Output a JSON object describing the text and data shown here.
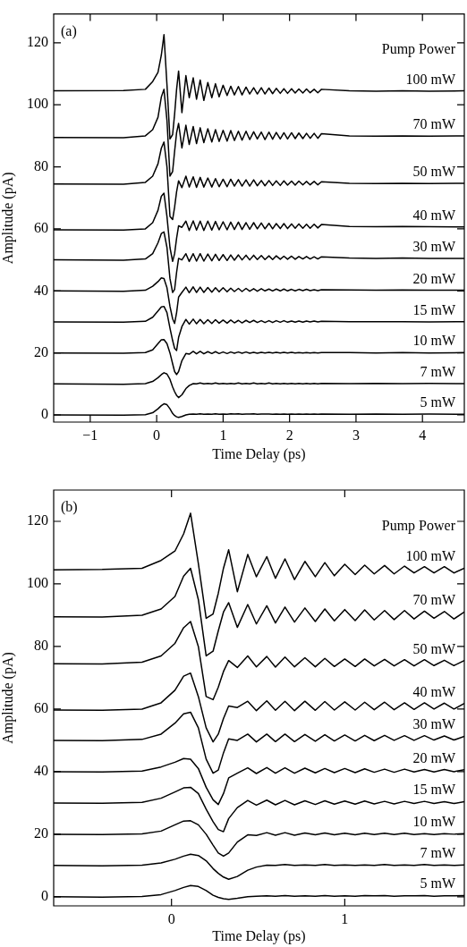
{
  "chart_data": [
    {
      "type": "line",
      "xlabel": "Time Delay (ps)",
      "ylabel": "Amplitude (pA)",
      "legend_title": "Pump Power",
      "annotations": [
        "(a)"
      ],
      "legend": "right",
      "grid": false,
      "marker": "none",
      "line_style": "solid",
      "xlim": [
        -1.55,
        4.63
      ],
      "xticks": [
        -1,
        0,
        1,
        2,
        3,
        4
      ],
      "ylim": [
        -2.3,
        129.3
      ],
      "yticks": [
        0,
        20,
        40,
        60,
        80,
        100,
        120
      ],
      "x": [
        -1.55,
        -0.5,
        -0.17,
        -0.06,
        0.02,
        0.07,
        0.11,
        0.155,
        0.2,
        0.24,
        0.27,
        0.3,
        0.33,
        0.38,
        0.44,
        0.49,
        0.55,
        0.6,
        0.655,
        0.71,
        0.77,
        0.83,
        0.885,
        0.94,
        1.0,
        1.06,
        1.115,
        1.17,
        1.23,
        1.285,
        1.345,
        1.4,
        1.46,
        1.515,
        1.575,
        1.63,
        1.69,
        1.745,
        1.8,
        1.86,
        1.915,
        1.97,
        2.03,
        2.085,
        2.14,
        2.2,
        2.255,
        2.31,
        2.37,
        2.425,
        2.48,
        2.9,
        3.3,
        3.7,
        4.1,
        4.63
      ],
      "series": [
        {
          "name": "100 mW",
          "color": "#000000",
          "values": [
            104.5,
            104.6,
            105,
            107.5,
            110.5,
            116,
            122.6,
            106.5,
            89,
            90.4,
            97,
            105,
            110.9,
            97.5,
            109.4,
            102.3,
            108.7,
            101.8,
            108,
            101.4,
            107.2,
            102.3,
            106.8,
            102.6,
            106.3,
            103,
            106,
            103.2,
            105.9,
            103.2,
            105.7,
            103.5,
            105.5,
            103.5,
            105.5,
            103.5,
            105.4,
            103.6,
            105.3,
            103.7,
            105.2,
            103.7,
            105.2,
            103.8,
            105.1,
            103.8,
            105.1,
            103.9,
            105,
            103.9,
            105,
            104.5,
            104.4,
            104.5,
            104.4,
            104.5
          ]
        },
        {
          "name": "70 mW",
          "color": "#000000",
          "values": [
            89.5,
            89.4,
            90,
            92,
            96,
            102.5,
            105,
            95,
            77,
            78.5,
            85,
            91,
            94,
            86.1,
            93.4,
            87.2,
            93,
            87.5,
            92.6,
            87.8,
            92.3,
            88,
            92,
            88.2,
            91.8,
            88.3,
            91.7,
            88.5,
            91.5,
            88.6,
            91.5,
            88.8,
            91.3,
            89,
            91.2,
            88.8,
            91.2,
            88.9,
            91.1,
            89,
            91,
            89,
            91,
            89.1,
            90.9,
            89.1,
            90.8,
            89.2,
            90.8,
            89.2,
            90.7,
            90,
            89.9,
            90,
            89.9,
            90
          ]
        },
        {
          "name": "50 mW",
          "color": "#000000",
          "values": [
            74.5,
            74.4,
            75,
            77,
            81,
            86,
            88,
            80,
            64,
            63,
            67,
            72,
            75.5,
            73.3,
            77,
            73.5,
            76.8,
            73.4,
            76.6,
            73.5,
            76.4,
            73.5,
            76.2,
            73.6,
            76,
            73.6,
            76,
            73.8,
            75.9,
            73.8,
            75.8,
            73.8,
            75.8,
            73.9,
            75.6,
            73.9,
            75.6,
            74,
            75.5,
            74,
            75.5,
            74.1,
            75.4,
            74.1,
            75.4,
            74.2,
            75.3,
            74.2,
            75.3,
            74.2,
            75.2,
            74.7,
            74.6,
            74.7,
            74.6,
            74.7
          ]
        },
        {
          "name": "40 mW",
          "color": "#000000",
          "values": [
            59.7,
            59.6,
            60,
            62,
            66,
            70.5,
            71.5,
            64,
            54,
            49.5,
            52,
            57,
            61,
            60.5,
            62.5,
            59.5,
            62.6,
            59.6,
            62.5,
            59.5,
            62.5,
            59.6,
            62.4,
            59.7,
            62.3,
            59.7,
            62.2,
            59.8,
            62.2,
            59.8,
            62,
            59.9,
            62,
            60,
            61.9,
            60,
            61.8,
            60,
            61.7,
            60.1,
            61.7,
            60.1,
            61.6,
            60.2,
            61.6,
            60.2,
            61.5,
            60.2,
            61.5,
            60.3,
            61.4,
            60.8,
            60.7,
            60.8,
            60.7,
            60.6
          ]
        },
        {
          "name": "30 mW",
          "color": "#000000",
          "values": [
            50,
            49.9,
            50.3,
            52,
            55.5,
            58.5,
            59,
            54,
            44,
            39.5,
            40.5,
            46,
            50.5,
            50,
            52,
            49.5,
            52,
            49.6,
            52,
            49.6,
            51.9,
            49.7,
            51.8,
            49.8,
            51.7,
            49.8,
            51.6,
            49.9,
            51.6,
            50,
            51.5,
            50,
            51.5,
            50.1,
            51.4,
            50.1,
            51.3,
            50.1,
            51.3,
            50.2,
            51.2,
            50.2,
            51.2,
            50.2,
            51.1,
            50.3,
            51.1,
            50.3,
            51,
            50.3,
            51,
            50.6,
            50.5,
            50.6,
            50.5,
            50.5
          ]
        },
        {
          "name": "20 mW",
          "color": "#000000",
          "values": [
            40,
            39.9,
            40.2,
            41.5,
            43,
            44.2,
            44,
            41,
            35,
            31,
            29.5,
            33,
            38,
            39.5,
            41.2,
            39.4,
            41.3,
            39.5,
            41.2,
            39.5,
            41.1,
            39.6,
            41,
            39.7,
            41,
            39.7,
            40.9,
            39.8,
            40.8,
            39.8,
            40.8,
            39.9,
            40.7,
            39.9,
            40.7,
            40,
            40.6,
            40,
            40.6,
            40,
            40.6,
            40,
            40.5,
            40,
            40.5,
            40.1,
            40.5,
            40.1,
            40.4,
            40.1,
            40.4,
            40.3,
            40.2,
            40.3,
            40.2,
            40.2
          ]
        },
        {
          "name": "15 mW",
          "color": "#000000",
          "values": [
            30,
            29.9,
            30.2,
            31.5,
            33.5,
            34.8,
            35,
            33,
            28,
            24,
            21.5,
            20.8,
            25,
            28.5,
            30.8,
            29.3,
            30.9,
            29.4,
            30.8,
            29.4,
            30.7,
            29.5,
            30.7,
            29.6,
            30.6,
            29.6,
            30.6,
            29.7,
            30.5,
            29.7,
            30.5,
            29.8,
            30.5,
            29.8,
            30.4,
            29.8,
            30.4,
            29.8,
            30.4,
            29.9,
            30.4,
            29.9,
            30.3,
            29.9,
            30.3,
            29.9,
            30.3,
            30,
            30.3,
            30,
            30.2,
            30.1,
            30.1,
            30.1,
            30,
            30.1
          ]
        },
        {
          "name": "10 mW",
          "color": "#000000",
          "values": [
            20,
            19.9,
            20.1,
            21,
            23,
            24.2,
            24.3,
            23,
            20,
            16.5,
            14,
            13,
            14,
            17.5,
            19.8,
            19.6,
            20.5,
            19.7,
            20.5,
            19.7,
            20.4,
            19.8,
            20.4,
            19.8,
            20.3,
            19.8,
            20.3,
            19.9,
            20.3,
            19.9,
            20.3,
            19.9,
            20.2,
            19.9,
            20.2,
            20,
            20.2,
            20,
            20.2,
            20,
            20.2,
            20,
            20.2,
            20,
            20.1,
            20,
            20.1,
            20,
            20.1,
            20,
            20.1,
            20.1,
            20,
            20.1,
            20,
            20.1
          ]
        },
        {
          "name": "7 mW",
          "color": "#000000",
          "values": [
            10,
            9.9,
            10.1,
            10.8,
            12,
            13,
            13.6,
            13.2,
            11.5,
            9,
            7.5,
            6.3,
            5.6,
            6.5,
            8.5,
            9.5,
            10.1,
            10,
            10.3,
            10,
            10.2,
            10,
            10.3,
            10,
            10.2,
            10,
            10.2,
            10,
            10.3,
            10,
            10.2,
            10,
            10.3,
            10,
            10.2,
            10,
            10.3,
            10,
            10.2,
            10,
            10.2,
            10,
            10.2,
            10,
            10.2,
            10,
            10.2,
            10,
            10.2,
            10,
            10.2,
            10.1,
            10.2,
            10.1,
            10.2,
            10.1
          ]
        },
        {
          "name": "5 mW",
          "color": "#000000",
          "values": [
            0,
            -0.1,
            0.1,
            0.7,
            2,
            3,
            3.6,
            3.3,
            2,
            0.5,
            -0.2,
            -0.6,
            -0.8,
            -0.5,
            0,
            0.2,
            0.3,
            0.2,
            0.4,
            0.2,
            0.3,
            0.2,
            0.4,
            0.2,
            0.3,
            0.2,
            0.4,
            0.3,
            0.4,
            0.2,
            0.3,
            0.3,
            0.4,
            0.2,
            0.3,
            0.3,
            0.3,
            0.2,
            0.3,
            0.2,
            0.3,
            0.2,
            0.3,
            0.2,
            0.3,
            0.2,
            0.3,
            0.2,
            0.3,
            0.2,
            0.3,
            0.2,
            0.3,
            0.2,
            0.3,
            0.2
          ]
        }
      ]
    },
    {
      "type": "line",
      "xlabel": "Time Delay (ps)",
      "ylabel": "Amplitude (pA)",
      "legend_title": "Pump Power",
      "annotations": [
        "(b)"
      ],
      "legend": "right",
      "grid": false,
      "marker": "none",
      "line_style": "solid",
      "xlim": [
        -0.68,
        1.69
      ],
      "xticks": [
        0,
        1
      ],
      "ylim": [
        -2.9,
        130
      ],
      "yticks": [
        0,
        20,
        40,
        60,
        80,
        100,
        120
      ],
      "x": [
        -0.68,
        -0.4,
        -0.17,
        -0.06,
        0.02,
        0.07,
        0.11,
        0.155,
        0.2,
        0.24,
        0.27,
        0.3,
        0.33,
        0.38,
        0.44,
        0.49,
        0.55,
        0.6,
        0.655,
        0.71,
        0.77,
        0.83,
        0.885,
        0.94,
        1.0,
        1.06,
        1.115,
        1.17,
        1.23,
        1.285,
        1.345,
        1.4,
        1.46,
        1.515,
        1.575,
        1.63,
        1.69
      ],
      "series": [
        {
          "name": "100 mW",
          "color": "#000000",
          "values": [
            104.5,
            104.6,
            105,
            107.5,
            110.5,
            116,
            122.6,
            106.5,
            89,
            90.4,
            97,
            105,
            110.9,
            97.5,
            109.4,
            102.3,
            108.7,
            101.8,
            108,
            101.4,
            107.2,
            102.3,
            106.8,
            102.6,
            106.3,
            103,
            106,
            103.2,
            105.9,
            103.2,
            105.7,
            103.5,
            105.5,
            103.5,
            105.5,
            103.5,
            105
          ]
        },
        {
          "name": "70 mW",
          "color": "#000000",
          "values": [
            89.5,
            89.4,
            90,
            92,
            96,
            102.5,
            105,
            95,
            77,
            78.5,
            85,
            91,
            94,
            86.1,
            93.4,
            87.2,
            93,
            87.5,
            92.6,
            87.8,
            92.3,
            88,
            92,
            88.2,
            91.8,
            88.3,
            91.7,
            88.5,
            91.5,
            88.6,
            91.5,
            88.8,
            91.3,
            89,
            91.2,
            88.8,
            91
          ]
        },
        {
          "name": "50 mW",
          "color": "#000000",
          "values": [
            74.5,
            74.4,
            75,
            77,
            81,
            86,
            88,
            80,
            64,
            63,
            67,
            72,
            75.5,
            73.3,
            77,
            73.5,
            76.8,
            73.4,
            76.6,
            73.5,
            76.4,
            73.5,
            76.2,
            73.6,
            76,
            73.6,
            76,
            73.8,
            75.9,
            73.8,
            75.8,
            73.8,
            75.8,
            73.9,
            75.6,
            73.9,
            75.5
          ]
        },
        {
          "name": "40 mW",
          "color": "#000000",
          "values": [
            59.7,
            59.6,
            60,
            62,
            66,
            70.5,
            71.5,
            64,
            54,
            49.5,
            52,
            57,
            61,
            60.5,
            62.5,
            59.5,
            62.6,
            59.6,
            62.5,
            59.5,
            62.5,
            59.6,
            62.4,
            59.7,
            62.3,
            59.7,
            62.2,
            59.8,
            62.2,
            59.8,
            62,
            59.9,
            62,
            60,
            61.9,
            60,
            61.8
          ]
        },
        {
          "name": "30 mW",
          "color": "#000000",
          "values": [
            50,
            49.9,
            50.3,
            52,
            55.5,
            58.5,
            59,
            54,
            44,
            39.5,
            40.5,
            46,
            50.5,
            50,
            52,
            49.5,
            52,
            49.6,
            52,
            49.6,
            51.9,
            49.7,
            51.8,
            49.8,
            51.7,
            49.8,
            51.6,
            49.9,
            51.6,
            50,
            51.5,
            50,
            51.5,
            50.1,
            51.4,
            50.1,
            51.3
          ]
        },
        {
          "name": "20 mW",
          "color": "#000000",
          "values": [
            40,
            39.9,
            40.2,
            41.5,
            43,
            44.2,
            44,
            41,
            35,
            31,
            29.5,
            33,
            38,
            39.5,
            41.2,
            39.4,
            41.3,
            39.5,
            41.2,
            39.5,
            41.1,
            39.6,
            41,
            39.7,
            41,
            39.7,
            40.9,
            39.8,
            40.8,
            39.8,
            40.8,
            39.9,
            40.7,
            39.9,
            40.7,
            40,
            40.6
          ]
        },
        {
          "name": "15 mW",
          "color": "#000000",
          "values": [
            30,
            29.9,
            30.2,
            31.5,
            33.5,
            34.8,
            35,
            33,
            28,
            24,
            21.5,
            20.8,
            25,
            28.5,
            30.8,
            29.3,
            30.9,
            29.4,
            30.8,
            29.4,
            30.7,
            29.5,
            30.7,
            29.6,
            30.6,
            29.6,
            30.6,
            29.7,
            30.5,
            29.7,
            30.5,
            29.8,
            30.5,
            29.8,
            30.4,
            29.8,
            30.4
          ]
        },
        {
          "name": "10 mW",
          "color": "#000000",
          "values": [
            20,
            19.9,
            20.1,
            21,
            23,
            24.2,
            24.3,
            23,
            20,
            16.5,
            14,
            13,
            14,
            17.5,
            19.8,
            19.6,
            20.5,
            19.7,
            20.5,
            19.7,
            20.4,
            19.8,
            20.4,
            19.8,
            20.3,
            19.8,
            20.3,
            19.9,
            20.3,
            19.9,
            20.3,
            19.9,
            20.2,
            19.9,
            20.2,
            20,
            20.2
          ]
        },
        {
          "name": "7 mW",
          "color": "#000000",
          "values": [
            10,
            9.9,
            10.1,
            10.8,
            12,
            13,
            13.6,
            13.2,
            11.5,
            9,
            7.5,
            6.3,
            5.6,
            6.5,
            8.5,
            9.5,
            10.1,
            10,
            10.3,
            10,
            10.2,
            10,
            10.3,
            10,
            10.2,
            10,
            10.2,
            10,
            10.3,
            10,
            10.2,
            10,
            10.3,
            10,
            10.2,
            10,
            10.2
          ]
        },
        {
          "name": "5 mW",
          "color": "#000000",
          "values": [
            0,
            -0.1,
            0.1,
            0.7,
            2,
            3,
            3.6,
            3.3,
            2,
            0.5,
            -0.2,
            -0.6,
            -0.8,
            -0.5,
            0,
            0.2,
            0.3,
            0.2,
            0.4,
            0.2,
            0.3,
            0.2,
            0.4,
            0.2,
            0.3,
            0.2,
            0.4,
            0.3,
            0.4,
            0.2,
            0.3,
            0.3,
            0.4,
            0.2,
            0.3,
            0.3,
            0.4
          ]
        }
      ]
    }
  ]
}
